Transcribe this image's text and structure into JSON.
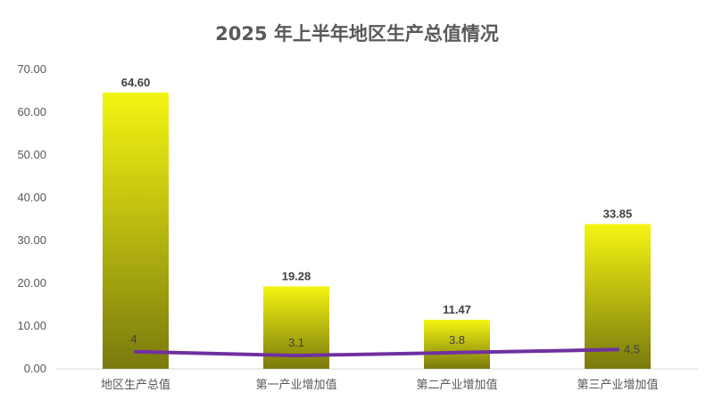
{
  "chart_data": {
    "type": "bar",
    "title": "2025 年上半年地区生产总值情况",
    "categories": [
      "地区生产总值",
      "第一产业增加值",
      "第二产业增加值",
      "第三产业增加值"
    ],
    "series": [
      {
        "type": "bar",
        "values": [
          64.6,
          19.28,
          11.47,
          33.85
        ],
        "labels": [
          "64.60",
          "19.28",
          "11.47",
          "33.85"
        ],
        "color": "#f5f512",
        "color_bottom": "#7a7a0e"
      },
      {
        "type": "line",
        "values": [
          4,
          3.1,
          3.8,
          4.5
        ],
        "labels": [
          "4",
          "3.1",
          "3.8",
          "4.5"
        ],
        "color": "#7030a0"
      }
    ],
    "ylim": [
      0,
      70
    ],
    "yticks": [
      "0.00",
      "10.00",
      "20.00",
      "30.00",
      "40.00",
      "50.00",
      "60.00",
      "70.00"
    ],
    "xlabel": "",
    "ylabel": "",
    "grid": false,
    "legend": "none"
  }
}
